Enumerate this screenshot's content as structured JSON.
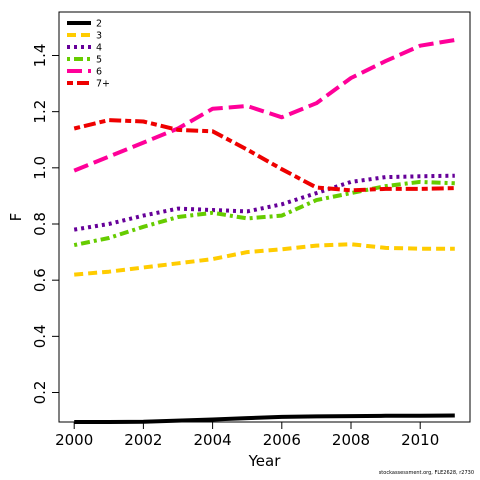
{
  "chart_data": {
    "type": "line",
    "xlabel": "Year",
    "ylabel": "F",
    "xlim": [
      2000,
      2011
    ],
    "ylim": [
      0.1,
      1.5
    ],
    "xticks": [
      2000,
      2002,
      2004,
      2006,
      2008,
      2010
    ],
    "yticks": [
      0.2,
      0.4,
      0.6,
      0.8,
      1.0,
      1.2,
      1.4
    ],
    "grid": false,
    "legend_position": "top-left",
    "x": [
      2000,
      2001,
      2002,
      2003,
      2004,
      2005,
      2006,
      2007,
      2008,
      2009,
      2010,
      2011
    ],
    "series": [
      {
        "name": "2",
        "color": "#000000",
        "dash": "solid",
        "values": [
          0.095,
          0.095,
          0.096,
          0.1,
          0.104,
          0.109,
          0.113,
          0.115,
          0.116,
          0.117,
          0.117,
          0.118
        ]
      },
      {
        "name": "3",
        "color": "#FFCC00",
        "dash": "dashed",
        "values": [
          0.62,
          0.63,
          0.645,
          0.66,
          0.675,
          0.7,
          0.71,
          0.723,
          0.728,
          0.715,
          0.712,
          0.712
        ]
      },
      {
        "name": "4",
        "color": "#660099",
        "dash": "dotted",
        "values": [
          0.78,
          0.8,
          0.83,
          0.855,
          0.85,
          0.845,
          0.87,
          0.91,
          0.95,
          0.967,
          0.97,
          0.972
        ]
      },
      {
        "name": "5",
        "color": "#66CC00",
        "dash": "dotdash",
        "values": [
          0.725,
          0.75,
          0.79,
          0.825,
          0.84,
          0.82,
          0.83,
          0.885,
          0.91,
          0.935,
          0.95,
          0.945
        ]
      },
      {
        "name": "6",
        "color": "#FF0099",
        "dash": "longdash",
        "values": [
          0.99,
          1.04,
          1.09,
          1.14,
          1.21,
          1.22,
          1.18,
          1.23,
          1.32,
          1.38,
          1.435,
          1.455
        ]
      },
      {
        "name": "7+",
        "color": "#EE0000",
        "dash": "twodash",
        "values": [
          1.14,
          1.17,
          1.165,
          1.135,
          1.13,
          1.065,
          0.995,
          0.93,
          0.92,
          0.925,
          0.925,
          0.928
        ]
      }
    ]
  },
  "footer_text": "stockassessment.org, FLE2628, r2730"
}
